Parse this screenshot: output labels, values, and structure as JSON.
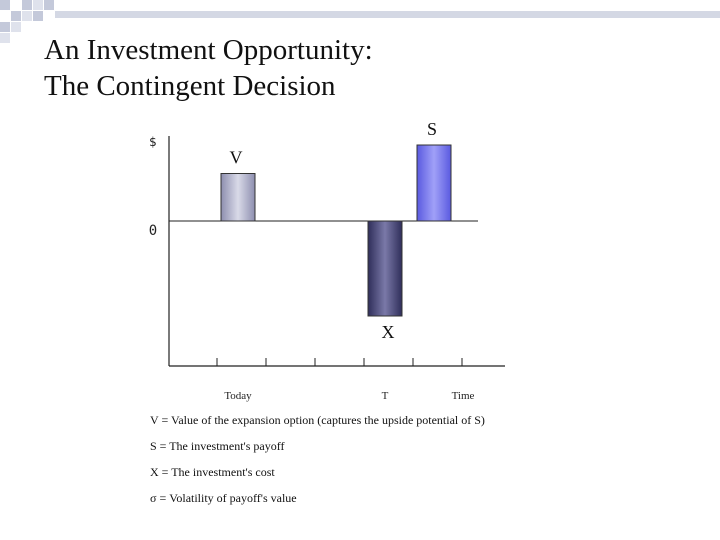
{
  "slide": {
    "title_line1": "An Investment Opportunity:",
    "title_line2": "The Contingent Decision"
  },
  "chart_data": {
    "type": "bar",
    "title": "",
    "ylabel": "$",
    "zero_label": "0",
    "xlabel": "Time",
    "ylim": [
      -1.85,
      1.2
    ],
    "x_tick_labels": [
      {
        "label": "Today",
        "at": 1
      },
      {
        "label": "T",
        "at": 4
      }
    ],
    "bars": [
      {
        "label": "V",
        "x": 1,
        "value": 0.75,
        "label_side": "above",
        "fill": "light"
      },
      {
        "label": "X",
        "x": 4,
        "value": -1.5,
        "label_side": "below",
        "fill": "dark"
      },
      {
        "label": "S",
        "x": 5,
        "value": 1.2,
        "label_side": "above",
        "fill": "blue"
      }
    ],
    "colors": {
      "light": "#b7b8cf",
      "dark": "#565583",
      "blue": "#7777ee",
      "axis": "#222222"
    }
  },
  "legend": [
    "V = Value of the expansion option (captures the upside potential of S)",
    "S = The investment's payoff",
    "X = The investment's cost",
    "σ = Volatility of payoff's value"
  ]
}
